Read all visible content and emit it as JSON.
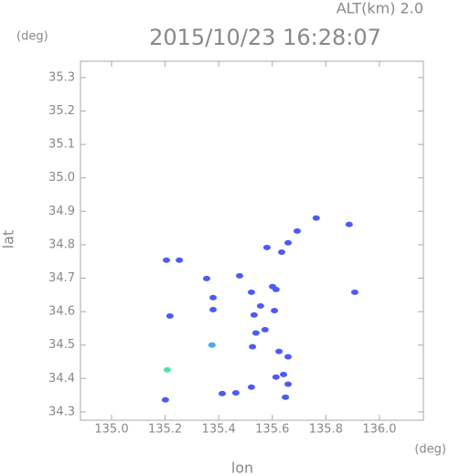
{
  "chart_data": {
    "type": "scatter",
    "title": "2015/10/23 16:28:07",
    "subtitle": "ALT(km) 2.0",
    "y_unit": "(deg)",
    "x_unit": "(deg)",
    "x_label": "lon",
    "y_label": "lat",
    "xlim": [
      134.884,
      136.164
    ],
    "ylim": [
      34.275,
      35.349
    ],
    "xticks": [
      {
        "value": 135,
        "label": "135.0"
      },
      135.2,
      135.4,
      135.6,
      135.8,
      {
        "value": 136,
        "label": "136.0"
      }
    ],
    "yticks": [
      34.3,
      34.4,
      34.5,
      34.6,
      34.7,
      34.8,
      34.9,
      {
        "value": 35,
        "label": "35.0"
      },
      35.1,
      35.2,
      35.3
    ],
    "series": [
      {
        "color": "#4b5cf2",
        "x": [
          135.205,
          135.253,
          135.218,
          135.201,
          135.355,
          135.379,
          135.379,
          135.413,
          135.464,
          135.522,
          135.478,
          135.522,
          135.532,
          135.539,
          135.526,
          135.556,
          135.614,
          135.608,
          135.573,
          135.625,
          135.614,
          135.642,
          135.659,
          135.649,
          135.659,
          135.635,
          135.58,
          135.659,
          135.693,
          135.764,
          135.887,
          135.908,
          135.601
        ],
        "values": [
          34.754,
          34.754,
          34.587,
          34.336,
          34.699,
          34.642,
          34.606,
          34.355,
          34.357,
          34.374,
          34.707,
          34.658,
          34.59,
          34.536,
          34.495,
          34.617,
          34.666,
          34.603,
          34.546,
          34.481,
          34.404,
          34.412,
          34.465,
          34.344,
          34.383,
          34.778,
          34.792,
          34.806,
          34.841,
          34.88,
          34.861,
          34.658,
          34.675
        ]
      },
      {
        "color": "#46a8f0",
        "x": [
          135.375
        ],
        "values": [
          34.5
        ]
      },
      {
        "color": "#52e0a4",
        "x": [
          135.208
        ],
        "values": [
          34.426
        ]
      }
    ]
  }
}
